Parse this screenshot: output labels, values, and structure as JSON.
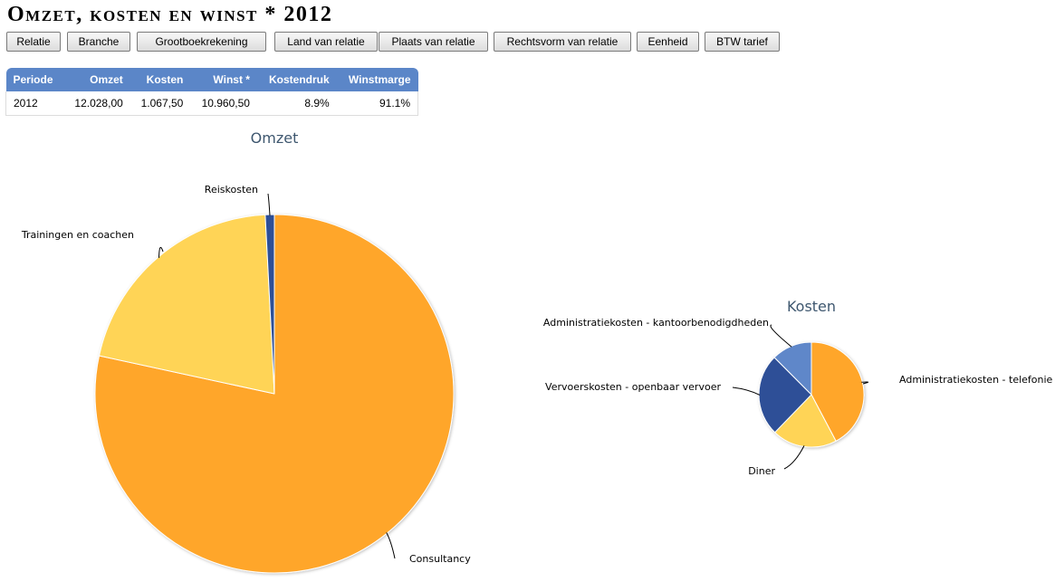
{
  "page": {
    "title": "Omzet, kosten en winst * 2012"
  },
  "tabs": [
    {
      "label": "Relatie",
      "active": false
    },
    {
      "label": "Branche",
      "active": false
    },
    {
      "label": "Grootboekrekening",
      "active": true
    },
    {
      "label": "Land van relatie",
      "active": false
    },
    {
      "label": "Plaats van relatie",
      "active": false
    },
    {
      "label": "Rechtsvorm van relatie",
      "active": false
    },
    {
      "label": "Eenheid",
      "active": false
    },
    {
      "label": "BTW tarief",
      "active": false
    }
  ],
  "summary": {
    "headers": [
      "Periode",
      "Omzet",
      "Kosten",
      "Winst *",
      "Kostendruk",
      "Winstmarge"
    ],
    "rows": [
      [
        "2012",
        "12.028,00",
        "1.067,50",
        "10.960,50",
        "8.9%",
        "91.1%"
      ]
    ]
  },
  "colors": {
    "header_blue": "#5b86c8",
    "orange": "#ffa62b",
    "yellow": "#ffd456",
    "dark_blue": "#2e5097",
    "light_blue": "#5e87c9",
    "title_text": "#3e576f"
  },
  "chart_data": [
    {
      "type": "pie",
      "title": "Omzet",
      "slices": [
        {
          "label": "Consultancy",
          "value": 9430,
          "color": "#ffa62b"
        },
        {
          "label": "Trainingen en coachen",
          "value": 2500,
          "color": "#ffd456"
        },
        {
          "label": "Reiskosten",
          "value": 98,
          "color": "#2e5097"
        }
      ]
    },
    {
      "type": "pie",
      "title": "Kosten",
      "slices": [
        {
          "label": "Administratiekosten - telefonie",
          "value": 451,
          "color": "#ffa62b"
        },
        {
          "label": "Diner",
          "value": 213,
          "color": "#ffd456"
        },
        {
          "label": "Vervoerskosten - openbaar vervoer",
          "value": 270,
          "color": "#2e5097"
        },
        {
          "label": "Administratiekosten - kantoorbenodigdheden",
          "value": 133,
          "color": "#5e87c9"
        }
      ]
    }
  ]
}
